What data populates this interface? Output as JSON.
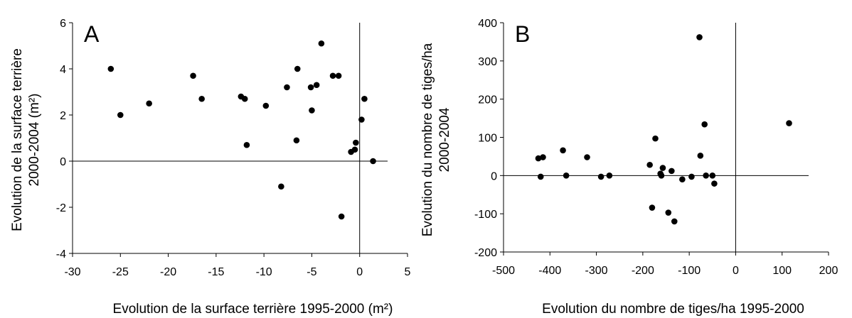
{
  "chart_data": [
    {
      "type": "scatter",
      "panel_label": "A",
      "xlabel": "Evolution de la surface terrière 1995-2000 (m²)",
      "ylabel_lines": [
        "Evolution de la surface terrière",
        "2000-2004 (m²)"
      ],
      "xlim": [
        -30,
        5
      ],
      "ylim": [
        -4,
        6
      ],
      "xticks": [
        -30,
        -25,
        -20,
        -15,
        -10,
        -5,
        0,
        5
      ],
      "yticks": [
        -4,
        -2,
        0,
        2,
        4,
        6
      ],
      "xtick_labels": [
        "-30",
        "-25",
        "-20",
        "-15",
        "-10",
        "-5",
        "0",
        "5"
      ],
      "ytick_labels": [
        "-4",
        "-2",
        "0",
        "2",
        "4",
        "6"
      ],
      "grid": false,
      "reference_lines": {
        "x": 0,
        "y": 0
      },
      "points": [
        {
          "x": -26.0,
          "y": 4.0
        },
        {
          "x": -25.0,
          "y": 2.0
        },
        {
          "x": -22.0,
          "y": 2.5
        },
        {
          "x": -17.4,
          "y": 3.7
        },
        {
          "x": -16.5,
          "y": 2.7
        },
        {
          "x": -12.4,
          "y": 2.8
        },
        {
          "x": -12.0,
          "y": 2.7
        },
        {
          "x": -11.8,
          "y": 0.7
        },
        {
          "x": -9.8,
          "y": 2.4
        },
        {
          "x": -8.2,
          "y": -1.1
        },
        {
          "x": -7.6,
          "y": 3.2
        },
        {
          "x": -6.6,
          "y": 0.9
        },
        {
          "x": -6.5,
          "y": 4.0
        },
        {
          "x": -5.1,
          "y": 3.2
        },
        {
          "x": -5.0,
          "y": 2.2
        },
        {
          "x": -4.5,
          "y": 3.3
        },
        {
          "x": -4.0,
          "y": 5.1
        },
        {
          "x": -2.8,
          "y": 3.7
        },
        {
          "x": -2.2,
          "y": 3.7
        },
        {
          "x": -1.9,
          "y": -2.4
        },
        {
          "x": -0.9,
          "y": 0.4
        },
        {
          "x": -0.5,
          "y": 0.5
        },
        {
          "x": -0.4,
          "y": 0.8
        },
        {
          "x": 0.2,
          "y": 1.8
        },
        {
          "x": 0.5,
          "y": 2.7
        },
        {
          "x": 1.4,
          "y": 0.0
        }
      ]
    },
    {
      "type": "scatter",
      "panel_label": "B",
      "xlabel": "Evolution du nombre de tiges/ha 1995-2000",
      "ylabel_lines": [
        "Evolution du nombre de tiges/ha",
        "2000-2004"
      ],
      "xlim": [
        -500,
        200
      ],
      "ylim": [
        -200,
        400
      ],
      "xticks": [
        -500,
        -400,
        -300,
        -200,
        -100,
        0,
        100,
        200
      ],
      "yticks": [
        -200,
        -100,
        0,
        100,
        200,
        300,
        400
      ],
      "xtick_labels": [
        "-500",
        "-400",
        "-300",
        "-200",
        "-100",
        "0",
        "100",
        "200"
      ],
      "ytick_labels": [
        "-200",
        "-100",
        "0",
        "100",
        "200",
        "300",
        "400"
      ],
      "grid": false,
      "reference_lines": {
        "x": 0,
        "y": 0
      },
      "points": [
        {
          "x": -425,
          "y": 45
        },
        {
          "x": -420,
          "y": -3
        },
        {
          "x": -415,
          "y": 48
        },
        {
          "x": -372,
          "y": 66
        },
        {
          "x": -365,
          "y": 0
        },
        {
          "x": -320,
          "y": 48
        },
        {
          "x": -290,
          "y": -3
        },
        {
          "x": -272,
          "y": 0
        },
        {
          "x": -185,
          "y": 28
        },
        {
          "x": -180,
          "y": -84
        },
        {
          "x": -173,
          "y": 97
        },
        {
          "x": -162,
          "y": 5
        },
        {
          "x": -160,
          "y": 0
        },
        {
          "x": -157,
          "y": 20
        },
        {
          "x": -145,
          "y": -97
        },
        {
          "x": -138,
          "y": 12
        },
        {
          "x": -132,
          "y": -120
        },
        {
          "x": -115,
          "y": -10
        },
        {
          "x": -95,
          "y": -3
        },
        {
          "x": -78,
          "y": 362
        },
        {
          "x": -76,
          "y": 52
        },
        {
          "x": -67,
          "y": 134
        },
        {
          "x": -64,
          "y": 0
        },
        {
          "x": -50,
          "y": 0
        },
        {
          "x": -46,
          "y": -21
        },
        {
          "x": 115,
          "y": 137
        }
      ]
    }
  ]
}
